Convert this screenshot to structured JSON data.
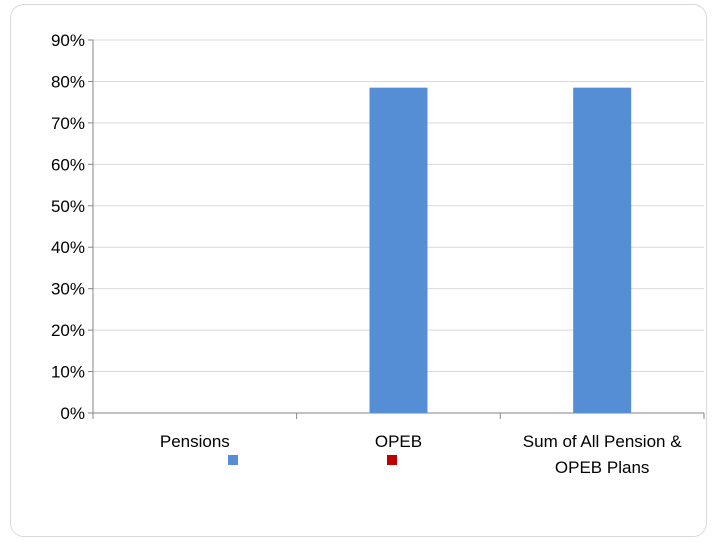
{
  "chart_data": {
    "type": "bar",
    "categories": [
      "Pensions",
      "OPEB",
      "Sum of All Pension & OPEB Plans"
    ],
    "category_lines": [
      [
        "Pensions"
      ],
      [
        "OPEB"
      ],
      [
        "Sum of All Pension &",
        "OPEB Plans"
      ]
    ],
    "series": [
      {
        "color": "#558ed5",
        "values": [
          0,
          0.785,
          0.785
        ]
      },
      {
        "color": "#c00000",
        "values": [
          0,
          0,
          0
        ]
      }
    ],
    "ylim": [
      0,
      0.9
    ],
    "yticks": [
      "0%",
      "10%",
      "20%",
      "30%",
      "40%",
      "50%",
      "60%",
      "70%",
      "80%",
      "90%"
    ],
    "grid": true,
    "legend_placement": "below-categories"
  }
}
